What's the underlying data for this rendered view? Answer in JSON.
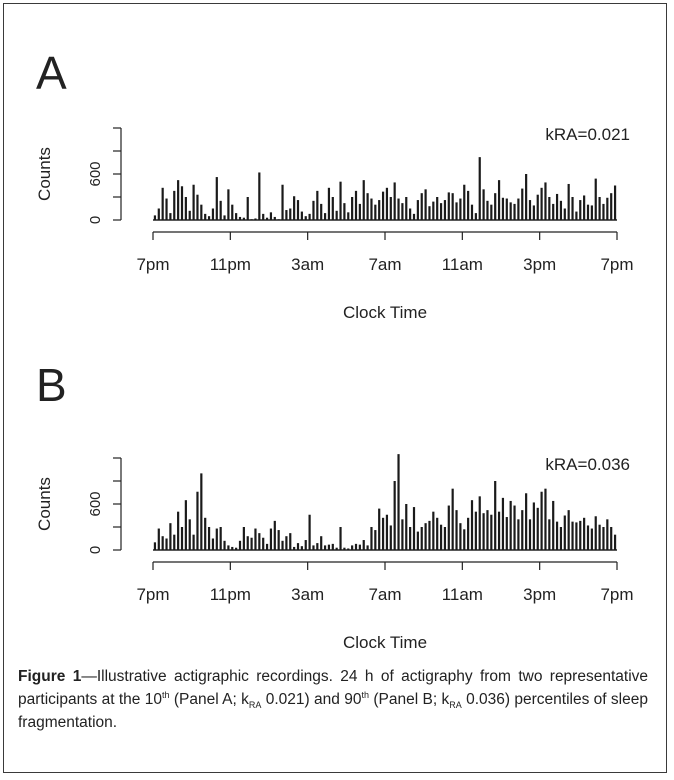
{
  "chart_data": [
    {
      "type": "bar",
      "panel": "A",
      "annotation": "kRA=0.021",
      "xlabel": "Clock Time",
      "ylabel": "Counts",
      "x_ticks": [
        "7pm",
        "11pm",
        "3am",
        "7am",
        "11am",
        "3pm",
        "7pm"
      ],
      "x_range_hours": [
        0,
        24
      ],
      "y_ticks": [
        0,
        600
      ],
      "ylim": [
        0,
        1200
      ],
      "grid": false,
      "series": [
        {
          "values": [
            60,
            150,
            420,
            280,
            90,
            380,
            520,
            440,
            300,
            120,
            460,
            330,
            200,
            80,
            50,
            150,
            560,
            250,
            60,
            400,
            200,
            90,
            40,
            30,
            300,
            10,
            20,
            620,
            80,
            30,
            100,
            40,
            10,
            460,
            130,
            150,
            310,
            260,
            110,
            50,
            80,
            250,
            380,
            210,
            90,
            420,
            300,
            120,
            500,
            220,
            100,
            300,
            380,
            210,
            520,
            350,
            280,
            200,
            260,
            370,
            420,
            300,
            490,
            280,
            220,
            300,
            150,
            80,
            260,
            350,
            400,
            180,
            240,
            300,
            220,
            260,
            360,
            350,
            230,
            280,
            460,
            380,
            200,
            90,
            820,
            400,
            250,
            200,
            350,
            520,
            290,
            280,
            230,
            210,
            280,
            410,
            600,
            260,
            190,
            330,
            420,
            490,
            300,
            210,
            340,
            250,
            150,
            470,
            300,
            110,
            260,
            320,
            200,
            190,
            540,
            300,
            210,
            290,
            350,
            450
          ]
        }
      ]
    },
    {
      "type": "bar",
      "panel": "B",
      "annotation": "kRA=0.036",
      "xlabel": "Clock Time",
      "ylabel": "Counts",
      "x_ticks": [
        "7pm",
        "11pm",
        "3am",
        "7am",
        "11am",
        "3pm",
        "7pm"
      ],
      "x_range_hours": [
        0,
        24
      ],
      "y_ticks": [
        0,
        600
      ],
      "ylim": [
        0,
        1200
      ],
      "grid": false,
      "series": [
        {
          "values": [
            100,
            280,
            180,
            150,
            350,
            200,
            500,
            300,
            650,
            400,
            200,
            760,
            1000,
            420,
            300,
            150,
            280,
            300,
            120,
            60,
            40,
            30,
            120,
            300,
            180,
            160,
            280,
            220,
            160,
            80,
            280,
            380,
            260,
            120,
            180,
            220,
            40,
            90,
            50,
            130,
            460,
            60,
            90,
            180,
            60,
            70,
            80,
            30,
            300,
            30,
            20,
            60,
            80,
            70,
            130,
            60,
            300,
            260,
            540,
            420,
            460,
            320,
            900,
            1250,
            400,
            600,
            300,
            560,
            240,
            300,
            350,
            380,
            500,
            420,
            330,
            300,
            580,
            800,
            520,
            350,
            270,
            420,
            650,
            500,
            700,
            480,
            520,
            460,
            900,
            500,
            680,
            430,
            640,
            580,
            400,
            520,
            740,
            400,
            620,
            550,
            760,
            800,
            400,
            640,
            370,
            300,
            450,
            520,
            370,
            360,
            380,
            420,
            320,
            280,
            440,
            330,
            300,
            400,
            300,
            200
          ]
        }
      ]
    }
  ],
  "caption": {
    "figure_label": "Figure 1",
    "text_before_sub_1": "—Illustrative actigraphic recordings. 24 h of actigraphy from two representative participants at the 10",
    "sup_1": "th",
    "text_panel_a": " (Panel A; k",
    "sub_1": "RA",
    "text_value_a": " 0.021) and 90",
    "sup_2": "th",
    "text_panel_b": " (Panel B; k",
    "sub_2": "RA",
    "text_value_b": " 0.036) percentiles of sleep fragmentation."
  }
}
